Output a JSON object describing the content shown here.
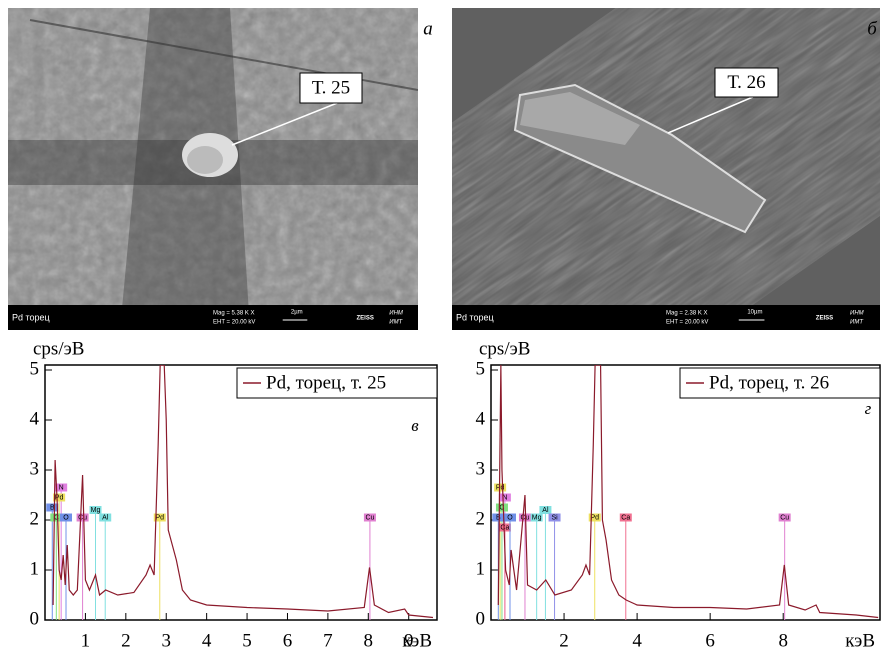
{
  "panels": [
    {
      "letter": "а",
      "callout": "Т. 25",
      "info": {
        "name": "Pd торец",
        "mag": "Mag =  5.38 K X",
        "eht": "EHT = 20.00 kV",
        "scale": "2µm",
        "brand": "ZEISS",
        "org1": "ИНМ",
        "org2": "ИМТ"
      }
    },
    {
      "letter": "б",
      "callout": "Т. 26",
      "info": {
        "name": "Pd торец",
        "mag": "Mag =  2.38 K X",
        "eht": "EHT = 20.00 kV",
        "scale": "10µm",
        "brand": "ZEISS",
        "org1": "ИНМ",
        "org2": "ИМТ"
      }
    }
  ],
  "chart_data": [
    {
      "type": "line",
      "panel_label": "в",
      "ylabel": "cps/эВ",
      "xlabel": "кэВ",
      "xlim": [
        0,
        9.7
      ],
      "ylim": [
        0,
        5.1
      ],
      "xticks": [
        1,
        2,
        3,
        4,
        5,
        6,
        7,
        8,
        9
      ],
      "yticks": [
        0,
        1,
        2,
        3,
        4,
        5
      ],
      "x": [
        0.2,
        0.25,
        0.3,
        0.35,
        0.4,
        0.45,
        0.5,
        0.55,
        0.6,
        0.7,
        0.8,
        0.93,
        1.0,
        1.1,
        1.25,
        1.35,
        1.5,
        1.8,
        2.2,
        2.5,
        2.6,
        2.7,
        2.8,
        2.85,
        2.95,
        3.0,
        3.05,
        3.15,
        3.25,
        3.4,
        3.6,
        4,
        5,
        6,
        7,
        7.9,
        8.03,
        8.15,
        8.5,
        8.9,
        9.0,
        9.6
      ],
      "series": [
        {
          "name": "Pd, торец, т. 25",
          "color": "#8b1a2b",
          "values": [
            0.3,
            3.2,
            2.4,
            1.0,
            0.8,
            1.3,
            0.7,
            1.5,
            0.6,
            0.5,
            0.6,
            2.9,
            0.8,
            0.6,
            0.9,
            0.5,
            0.6,
            0.5,
            0.55,
            0.9,
            1.1,
            0.9,
            3.5,
            5.1,
            5.1,
            4,
            1.8,
            1.5,
            1.2,
            0.6,
            0.4,
            0.3,
            0.25,
            0.22,
            0.18,
            0.25,
            1.05,
            0.3,
            0.15,
            0.22,
            0.1,
            0.05
          ]
        }
      ],
      "annotations": [
        {
          "label": "N",
          "x": 0.4,
          "y": 2.65,
          "color": "#e07fe0"
        },
        {
          "label": "Pd",
          "x": 0.35,
          "y": 2.45,
          "color": "#eee060"
        },
        {
          "label": "B",
          "x": 0.18,
          "y": 2.25,
          "color": "#7090e8"
        },
        {
          "label": "C",
          "x": 0.28,
          "y": 2.05,
          "color": "#80e080"
        },
        {
          "label": "O",
          "x": 0.52,
          "y": 2.05,
          "color": "#7090e8"
        },
        {
          "label": "Cu",
          "x": 0.93,
          "y": 2.05,
          "color": "#e080d0"
        },
        {
          "label": "Mg",
          "x": 1.25,
          "y": 2.2,
          "color": "#80e0e0"
        },
        {
          "label": "Al",
          "x": 1.49,
          "y": 2.05,
          "color": "#80e0e0"
        },
        {
          "label": "Pd",
          "x": 2.84,
          "y": 2.05,
          "color": "#eee060"
        },
        {
          "label": "Cu",
          "x": 8.04,
          "y": 2.05,
          "color": "#e080d0"
        }
      ]
    },
    {
      "type": "line",
      "panel_label": "г",
      "ylabel": "cps/эВ",
      "xlabel": "кэВ",
      "xlim": [
        0,
        10.65
      ],
      "ylim": [
        0,
        5.1
      ],
      "xticks": [
        2,
        4,
        6,
        8
      ],
      "yticks": [
        0,
        1,
        2,
        3,
        4,
        5
      ],
      "x": [
        0.2,
        0.27,
        0.3,
        0.4,
        0.5,
        0.55,
        0.7,
        0.93,
        1.0,
        1.25,
        1.5,
        1.75,
        2.2,
        2.5,
        2.6,
        2.7,
        2.8,
        2.85,
        3.0,
        3.05,
        3.15,
        3.3,
        3.5,
        3.7,
        4,
        5,
        6,
        7,
        7.9,
        8.03,
        8.15,
        8.6,
        8.9,
        9.0,
        10,
        10.6
      ],
      "series": [
        {
          "name": "Pd, торец, т. 26",
          "color": "#8b1a2b",
          "values": [
            0.3,
            5.1,
            3,
            1.0,
            0.7,
            1.4,
            0.6,
            2.5,
            0.7,
            0.6,
            0.8,
            0.5,
            0.6,
            0.9,
            1.1,
            0.9,
            3.5,
            5.1,
            5.1,
            2.0,
            1.6,
            0.8,
            0.5,
            0.4,
            0.3,
            0.25,
            0.25,
            0.22,
            0.3,
            1.1,
            0.3,
            0.2,
            0.3,
            0.15,
            0.1,
            0.05
          ]
        }
      ],
      "annotations": [
        {
          "label": "Pd",
          "x": 0.25,
          "y": 2.65,
          "color": "#eee060"
        },
        {
          "label": "N",
          "x": 0.38,
          "y": 2.45,
          "color": "#e07fe0"
        },
        {
          "label": "C",
          "x": 0.3,
          "y": 2.25,
          "color": "#80e080"
        },
        {
          "label": "B",
          "x": 0.2,
          "y": 2.05,
          "color": "#7090e8"
        },
        {
          "label": "Ca",
          "x": 0.38,
          "y": 1.85,
          "color": "#f07090"
        },
        {
          "label": "O",
          "x": 0.52,
          "y": 2.05,
          "color": "#7090e8"
        },
        {
          "label": "Cu",
          "x": 0.93,
          "y": 2.05,
          "color": "#e080d0"
        },
        {
          "label": "Mg",
          "x": 1.25,
          "y": 2.05,
          "color": "#80e0e0"
        },
        {
          "label": "Al",
          "x": 1.49,
          "y": 2.2,
          "color": "#80e0e0"
        },
        {
          "label": "Si",
          "x": 1.74,
          "y": 2.05,
          "color": "#9090e8"
        },
        {
          "label": "Pd",
          "x": 2.84,
          "y": 2.05,
          "color": "#eee060"
        },
        {
          "label": "Ca",
          "x": 3.69,
          "y": 2.05,
          "color": "#f07090"
        },
        {
          "label": "Cu",
          "x": 8.04,
          "y": 2.05,
          "color": "#e080d0"
        }
      ]
    }
  ]
}
